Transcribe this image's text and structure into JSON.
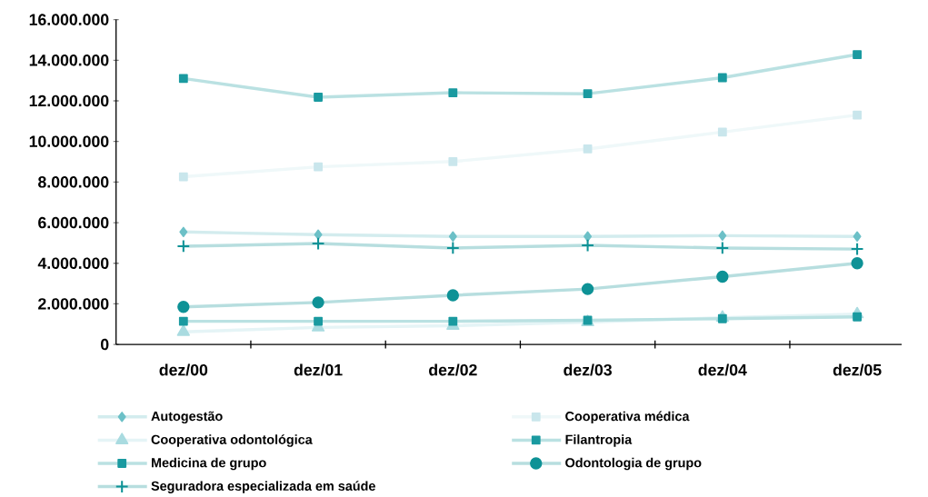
{
  "chart_data": {
    "type": "line",
    "categories": [
      "dez/00",
      "dez/01",
      "dez/02",
      "dez/03",
      "dez/04",
      "dez/05"
    ],
    "series": [
      {
        "name": "Autogestão",
        "color": "#6cc0c7",
        "marker": "diamond",
        "values": [
          5540000,
          5410000,
          5320000,
          5320000,
          5360000,
          5320000
        ]
      },
      {
        "name": "Cooperativa médica",
        "color": "#c9e6ec",
        "marker": "square",
        "values": [
          8260000,
          8750000,
          9010000,
          9630000,
          10460000,
          11300000
        ]
      },
      {
        "name": "Cooperativa odontológica",
        "color": "#a9dbe0",
        "marker": "triangle",
        "values": [
          620000,
          840000,
          920000,
          1100000,
          1320000,
          1490000
        ]
      },
      {
        "name": "Filantropia",
        "color": "#1a9aa0",
        "marker": "square",
        "values": [
          1140000,
          1140000,
          1140000,
          1190000,
          1270000,
          1360000
        ]
      },
      {
        "name": "Medicina de grupo",
        "color": "#1a9aa0",
        "marker": "square",
        "values": [
          13100000,
          12180000,
          12400000,
          12350000,
          13140000,
          14280000
        ]
      },
      {
        "name": "Odontologia de grupo",
        "color": "#0e9296",
        "marker": "circle",
        "values": [
          1850000,
          2070000,
          2420000,
          2730000,
          3340000,
          4000000
        ]
      },
      {
        "name": "Seguradora especializada em saúde",
        "color": "#0e9296",
        "marker": "cross",
        "values": [
          4840000,
          4970000,
          4750000,
          4880000,
          4750000,
          4700000
        ]
      }
    ],
    "ylim": [
      0,
      16000000
    ],
    "yticks": [
      {
        "value": 0,
        "label": "0"
      },
      {
        "value": 2000000,
        "label": "2.000.000"
      },
      {
        "value": 4000000,
        "label": "4.000.000"
      },
      {
        "value": 6000000,
        "label": "6.000.000"
      },
      {
        "value": 8000000,
        "label": "8.000.000"
      },
      {
        "value": 10000000,
        "label": "10.000.000"
      },
      {
        "value": 12000000,
        "label": "12.000.000"
      },
      {
        "value": 14000000,
        "label": "14.000.000"
      },
      {
        "value": 16000000,
        "label": "16.000.000"
      }
    ],
    "grid": false,
    "legend": "bottom",
    "line_style": "solid"
  }
}
